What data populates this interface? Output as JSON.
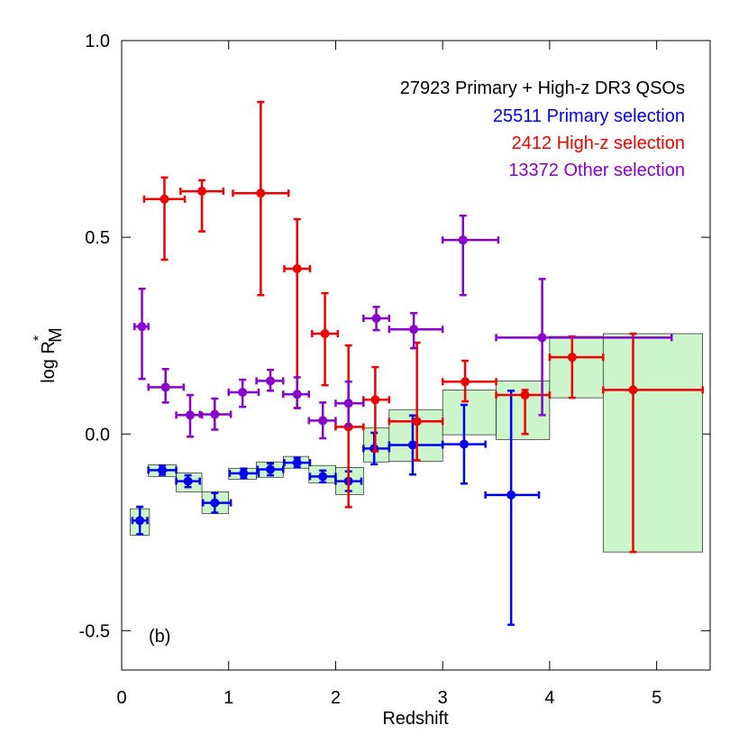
{
  "chart_data": {
    "type": "errorbar",
    "x_label": "Redshift",
    "y_label": {
      "base": "log R",
      "sup": "*",
      "sub": "M"
    },
    "legend_title": "27923 Primary + High-z DR3 QSOs",
    "annotation": "(b)",
    "xlim": [
      0,
      5.5
    ],
    "xticks": [
      0,
      1,
      2,
      3,
      4,
      5
    ],
    "ylim": [
      -0.6,
      1.0
    ],
    "yticks": [
      {
        "value": -0.5,
        "label": "-0.5"
      },
      {
        "value": 0,
        "label": "0.0"
      },
      0.5,
      {
        "value": 1,
        "label": "1.0"
      }
    ],
    "boxes": {
      "color": "#ccf5cc",
      "x_lo": [
        0.08,
        0.25,
        0.51,
        0.75,
        1.0,
        1.26,
        1.51,
        1.75,
        2.0,
        2.26,
        2.5,
        3.0,
        3.5,
        4.0,
        4.5
      ],
      "x_hi": [
        0.26,
        0.51,
        0.75,
        1.0,
        1.26,
        1.51,
        1.75,
        2.0,
        2.26,
        2.5,
        3.0,
        3.5,
        4.0,
        4.5,
        5.43
      ],
      "y_lo": [
        -0.257,
        -0.108,
        -0.147,
        -0.202,
        -0.115,
        -0.11,
        -0.087,
        -0.124,
        -0.154,
        -0.071,
        -0.069,
        -0.002,
        -0.014,
        0.092,
        -0.3
      ],
      "y_hi": [
        -0.19,
        -0.078,
        -0.099,
        -0.147,
        -0.087,
        -0.071,
        -0.057,
        -0.08,
        -0.085,
        0.016,
        0.062,
        0.112,
        0.135,
        0.248,
        0.255
      ]
    },
    "series": [
      {
        "name": "25511 Primary selection",
        "color": "#0000ee",
        "x": [
          0.17,
          0.38,
          0.62,
          0.87,
          1.14,
          1.39,
          1.64,
          1.88,
          2.12,
          2.36,
          2.72,
          3.2,
          3.64
        ],
        "x_lo": [
          0.1,
          0.25,
          0.51,
          0.76,
          1.01,
          1.27,
          1.52,
          1.76,
          2.0,
          2.26,
          2.5,
          3.0,
          3.4
        ],
        "x_hi": [
          0.24,
          0.51,
          0.73,
          1.02,
          1.28,
          1.51,
          1.76,
          2.0,
          2.24,
          2.5,
          3.0,
          3.4,
          3.9
        ],
        "values": [
          -0.22,
          -0.092,
          -0.12,
          -0.175,
          -0.1,
          -0.09,
          -0.073,
          -0.108,
          -0.12,
          -0.037,
          -0.028,
          -0.026,
          -0.155
        ],
        "y_lo": [
          -0.255,
          -0.104,
          -0.135,
          -0.2,
          -0.112,
          -0.105,
          -0.085,
          -0.123,
          -0.145,
          -0.077,
          -0.103,
          -0.126,
          -0.485
        ],
        "y_hi": [
          -0.185,
          -0.08,
          -0.105,
          -0.15,
          -0.088,
          -0.075,
          -0.061,
          -0.093,
          -0.095,
          0.003,
          0.047,
          0.074,
          0.11
        ]
      },
      {
        "name": "2412 High-z selection",
        "color": "#ee0000",
        "x": [
          0.4,
          0.75,
          1.3,
          1.64,
          1.9,
          2.12,
          2.37,
          2.76,
          3.21,
          3.77,
          4.21,
          4.78
        ],
        "x_lo": [
          0.21,
          0.55,
          1.04,
          1.52,
          1.78,
          2.0,
          2.26,
          2.5,
          3.0,
          3.5,
          4.0,
          4.5
        ],
        "x_hi": [
          0.59,
          0.95,
          1.56,
          1.76,
          2.02,
          2.26,
          2.5,
          3.0,
          3.5,
          4.0,
          4.5,
          5.43
        ],
        "values": [
          0.597,
          0.617,
          0.612,
          0.42,
          0.255,
          0.018,
          0.087,
          0.032,
          0.133,
          0.099,
          0.195,
          0.112
        ],
        "y_lo": [
          0.443,
          0.515,
          0.353,
          0.066,
          0.124,
          -0.186,
          -0.044,
          -0.067,
          0.083,
          0.0,
          0.092,
          -0.3
        ],
        "y_hi": [
          0.652,
          0.645,
          0.844,
          0.546,
          0.358,
          0.225,
          0.17,
          0.232,
          0.186,
          0.112,
          0.248,
          0.255
        ]
      },
      {
        "name": "13372 Other selection",
        "color": "#8800cc",
        "x": [
          0.19,
          0.41,
          0.64,
          0.87,
          1.13,
          1.39,
          1.64,
          1.88,
          2.12,
          2.38,
          2.73,
          3.19,
          3.93
        ],
        "x_lo": [
          0.12,
          0.25,
          0.51,
          0.73,
          1.0,
          1.26,
          1.51,
          1.75,
          2.0,
          2.26,
          2.5,
          3.0,
          3.5
        ],
        "x_hi": [
          0.25,
          0.58,
          0.75,
          1.02,
          1.28,
          1.51,
          1.75,
          2.0,
          2.26,
          2.5,
          3.0,
          3.52,
          5.14
        ],
        "values": [
          0.273,
          0.119,
          0.048,
          0.05,
          0.106,
          0.135,
          0.101,
          0.034,
          0.078,
          0.294,
          0.266,
          0.493,
          0.245
        ],
        "y_lo": [
          0.14,
          0.08,
          -0.007,
          0.011,
          0.069,
          0.11,
          0.066,
          -0.011,
          0.021,
          0.264,
          0.218,
          0.353,
          0.048
        ],
        "y_hi": [
          0.369,
          0.165,
          0.099,
          0.09,
          0.138,
          0.163,
          0.144,
          0.08,
          0.133,
          0.323,
          0.307,
          0.555,
          0.394
        ]
      }
    ]
  }
}
